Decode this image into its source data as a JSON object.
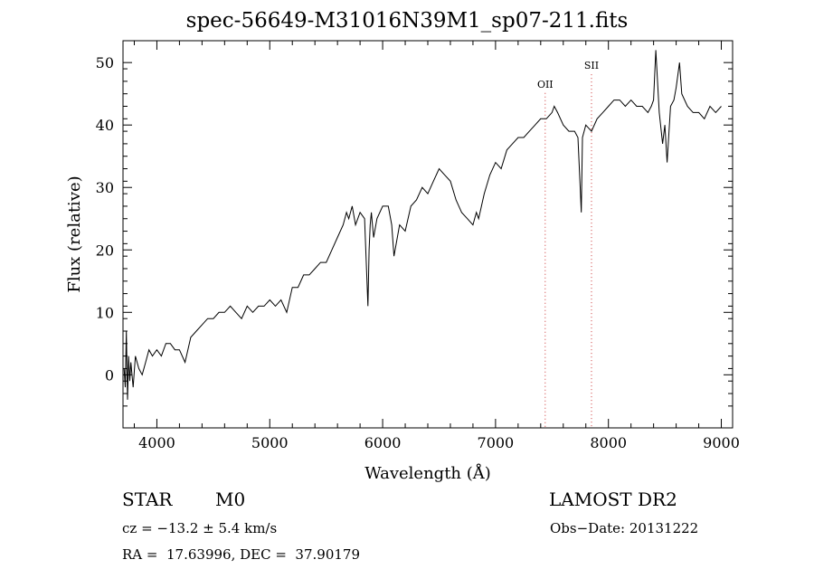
{
  "header": {
    "title": "spec-56649-M31016N39M1_sp07-211.fits"
  },
  "chart_data": {
    "type": "line",
    "xlabel": "Wavelength (Å)",
    "ylabel": "Flux (relative)",
    "xlim": [
      3700,
      9100
    ],
    "ylim": [
      -8.5,
      53.5
    ],
    "xticks": [
      4000,
      5000,
      6000,
      7000,
      8000,
      9000
    ],
    "yticks": [
      0,
      10,
      20,
      30,
      40,
      50
    ],
    "series": [
      {
        "x": [
          3710,
          3720,
          3730,
          3740,
          3750,
          3760,
          3770,
          3790,
          3810,
          3840,
          3870,
          3900,
          3930,
          3960,
          4000,
          4040,
          4080,
          4120,
          4160,
          4200,
          4250,
          4300,
          4350,
          4400,
          4450,
          4500,
          4550,
          4600,
          4650,
          4700,
          4750,
          4800,
          4850,
          4900,
          4950,
          5000,
          5050,
          5100,
          5150,
          5200,
          5250,
          5300,
          5350,
          5400,
          5450,
          5500,
          5550,
          5600,
          5650,
          5680,
          5700,
          5730,
          5760,
          5800,
          5840,
          5870,
          5880,
          5890,
          5900,
          5910,
          5920,
          5950,
          6000,
          6050,
          6080,
          6100,
          6130,
          6150,
          6200,
          6250,
          6300,
          6350,
          6400,
          6450,
          6500,
          6550,
          6600,
          6650,
          6700,
          6750,
          6800,
          6830,
          6850,
          6900,
          6950,
          7000,
          7050,
          7100,
          7150,
          7200,
          7250,
          7300,
          7350,
          7400,
          7450,
          7500,
          7520,
          7550,
          7600,
          7650,
          7700,
          7730,
          7750,
          7760,
          7770,
          7800,
          7850,
          7900,
          7950,
          8000,
          8050,
          8100,
          8150,
          8200,
          8250,
          8300,
          8350,
          8380,
          8400,
          8420,
          8450,
          8480,
          8500,
          8520,
          8550,
          8580,
          8600,
          8630,
          8650,
          8700,
          8750,
          8800,
          8850,
          8900,
          8950,
          9000
        ],
        "y": [
          1,
          -2,
          7,
          -4,
          3,
          -1,
          2,
          -2,
          3,
          1,
          0,
          2,
          4,
          3,
          4,
          3,
          5,
          5,
          4,
          4,
          2,
          6,
          7,
          8,
          9,
          9,
          10,
          10,
          11,
          10,
          9,
          11,
          10,
          11,
          11,
          12,
          11,
          12,
          10,
          14,
          14,
          16,
          16,
          17,
          18,
          18,
          20,
          22,
          24,
          26,
          25,
          27,
          24,
          26,
          25,
          11,
          20,
          24,
          26,
          24,
          22,
          25,
          27,
          27,
          24,
          19,
          22,
          24,
          23,
          27,
          28,
          30,
          29,
          31,
          33,
          32,
          31,
          28,
          26,
          25,
          24,
          26,
          25,
          29,
          32,
          34,
          33,
          36,
          37,
          38,
          38,
          39,
          40,
          41,
          41,
          42,
          43,
          42,
          40,
          39,
          39,
          38,
          30,
          26,
          38,
          40,
          39,
          41,
          42,
          43,
          44,
          44,
          43,
          44,
          43,
          43,
          42,
          43,
          44,
          52,
          42,
          37,
          40,
          34,
          43,
          44,
          46,
          50,
          45,
          43,
          42,
          42,
          41,
          43,
          42,
          43
        ]
      }
    ],
    "annotations": [
      {
        "label": "OII",
        "x": 7440,
        "y": 46
      },
      {
        "label": "SII",
        "x": 7850,
        "y": 49
      }
    ]
  },
  "footer": {
    "obj_class": "STAR",
    "obj_subclass": "M0",
    "survey": "LAMOST DR2",
    "cz": "cz = −13.2 ± 5.4 km/s",
    "obs_date": "Obs−Date: 20131222",
    "radec": "RA =  17.63996, DEC =  37.90179"
  }
}
